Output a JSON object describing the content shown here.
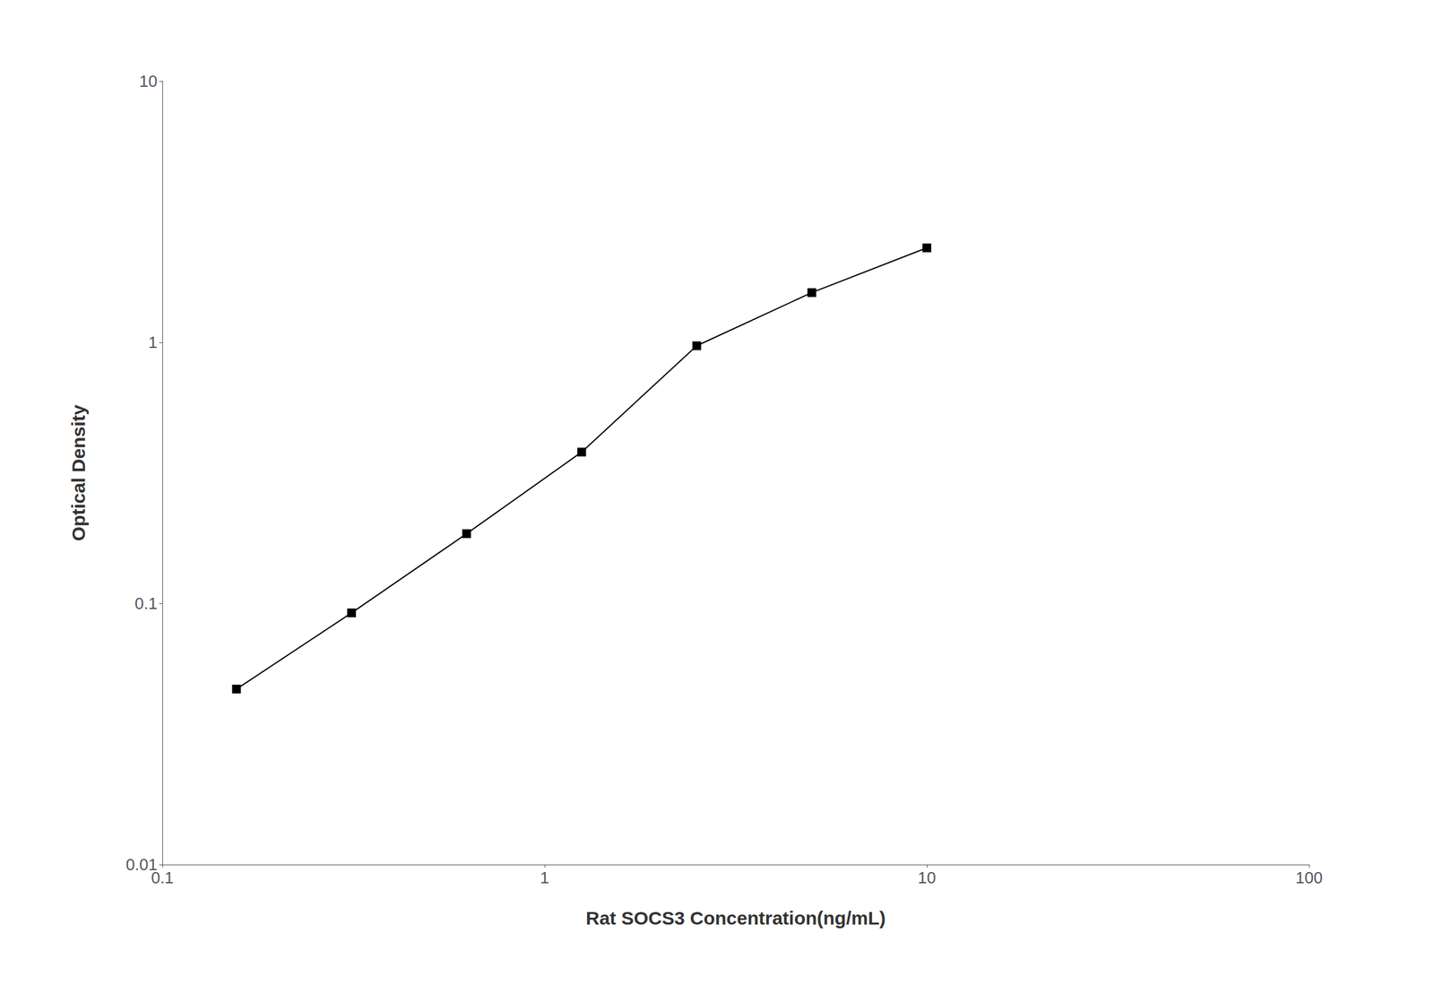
{
  "chart_data": {
    "type": "line",
    "x": [
      0.15625,
      0.3125,
      0.625,
      1.25,
      2.5,
      5.0,
      10.0
    ],
    "values": [
      0.047,
      0.092,
      0.185,
      0.38,
      0.97,
      1.55,
      2.3
    ],
    "xlabel": "Rat SOCS3 Concentration(ng/mL)",
    "ylabel": "Optical Density",
    "xlim": [
      0.1,
      100
    ],
    "ylim": [
      0.01,
      10
    ],
    "xticks": [
      0.1,
      1,
      10,
      100
    ],
    "yticks": [
      0.01,
      0.1,
      1,
      10
    ],
    "log": true,
    "grid": false,
    "color": "#000000",
    "marker": "square"
  }
}
